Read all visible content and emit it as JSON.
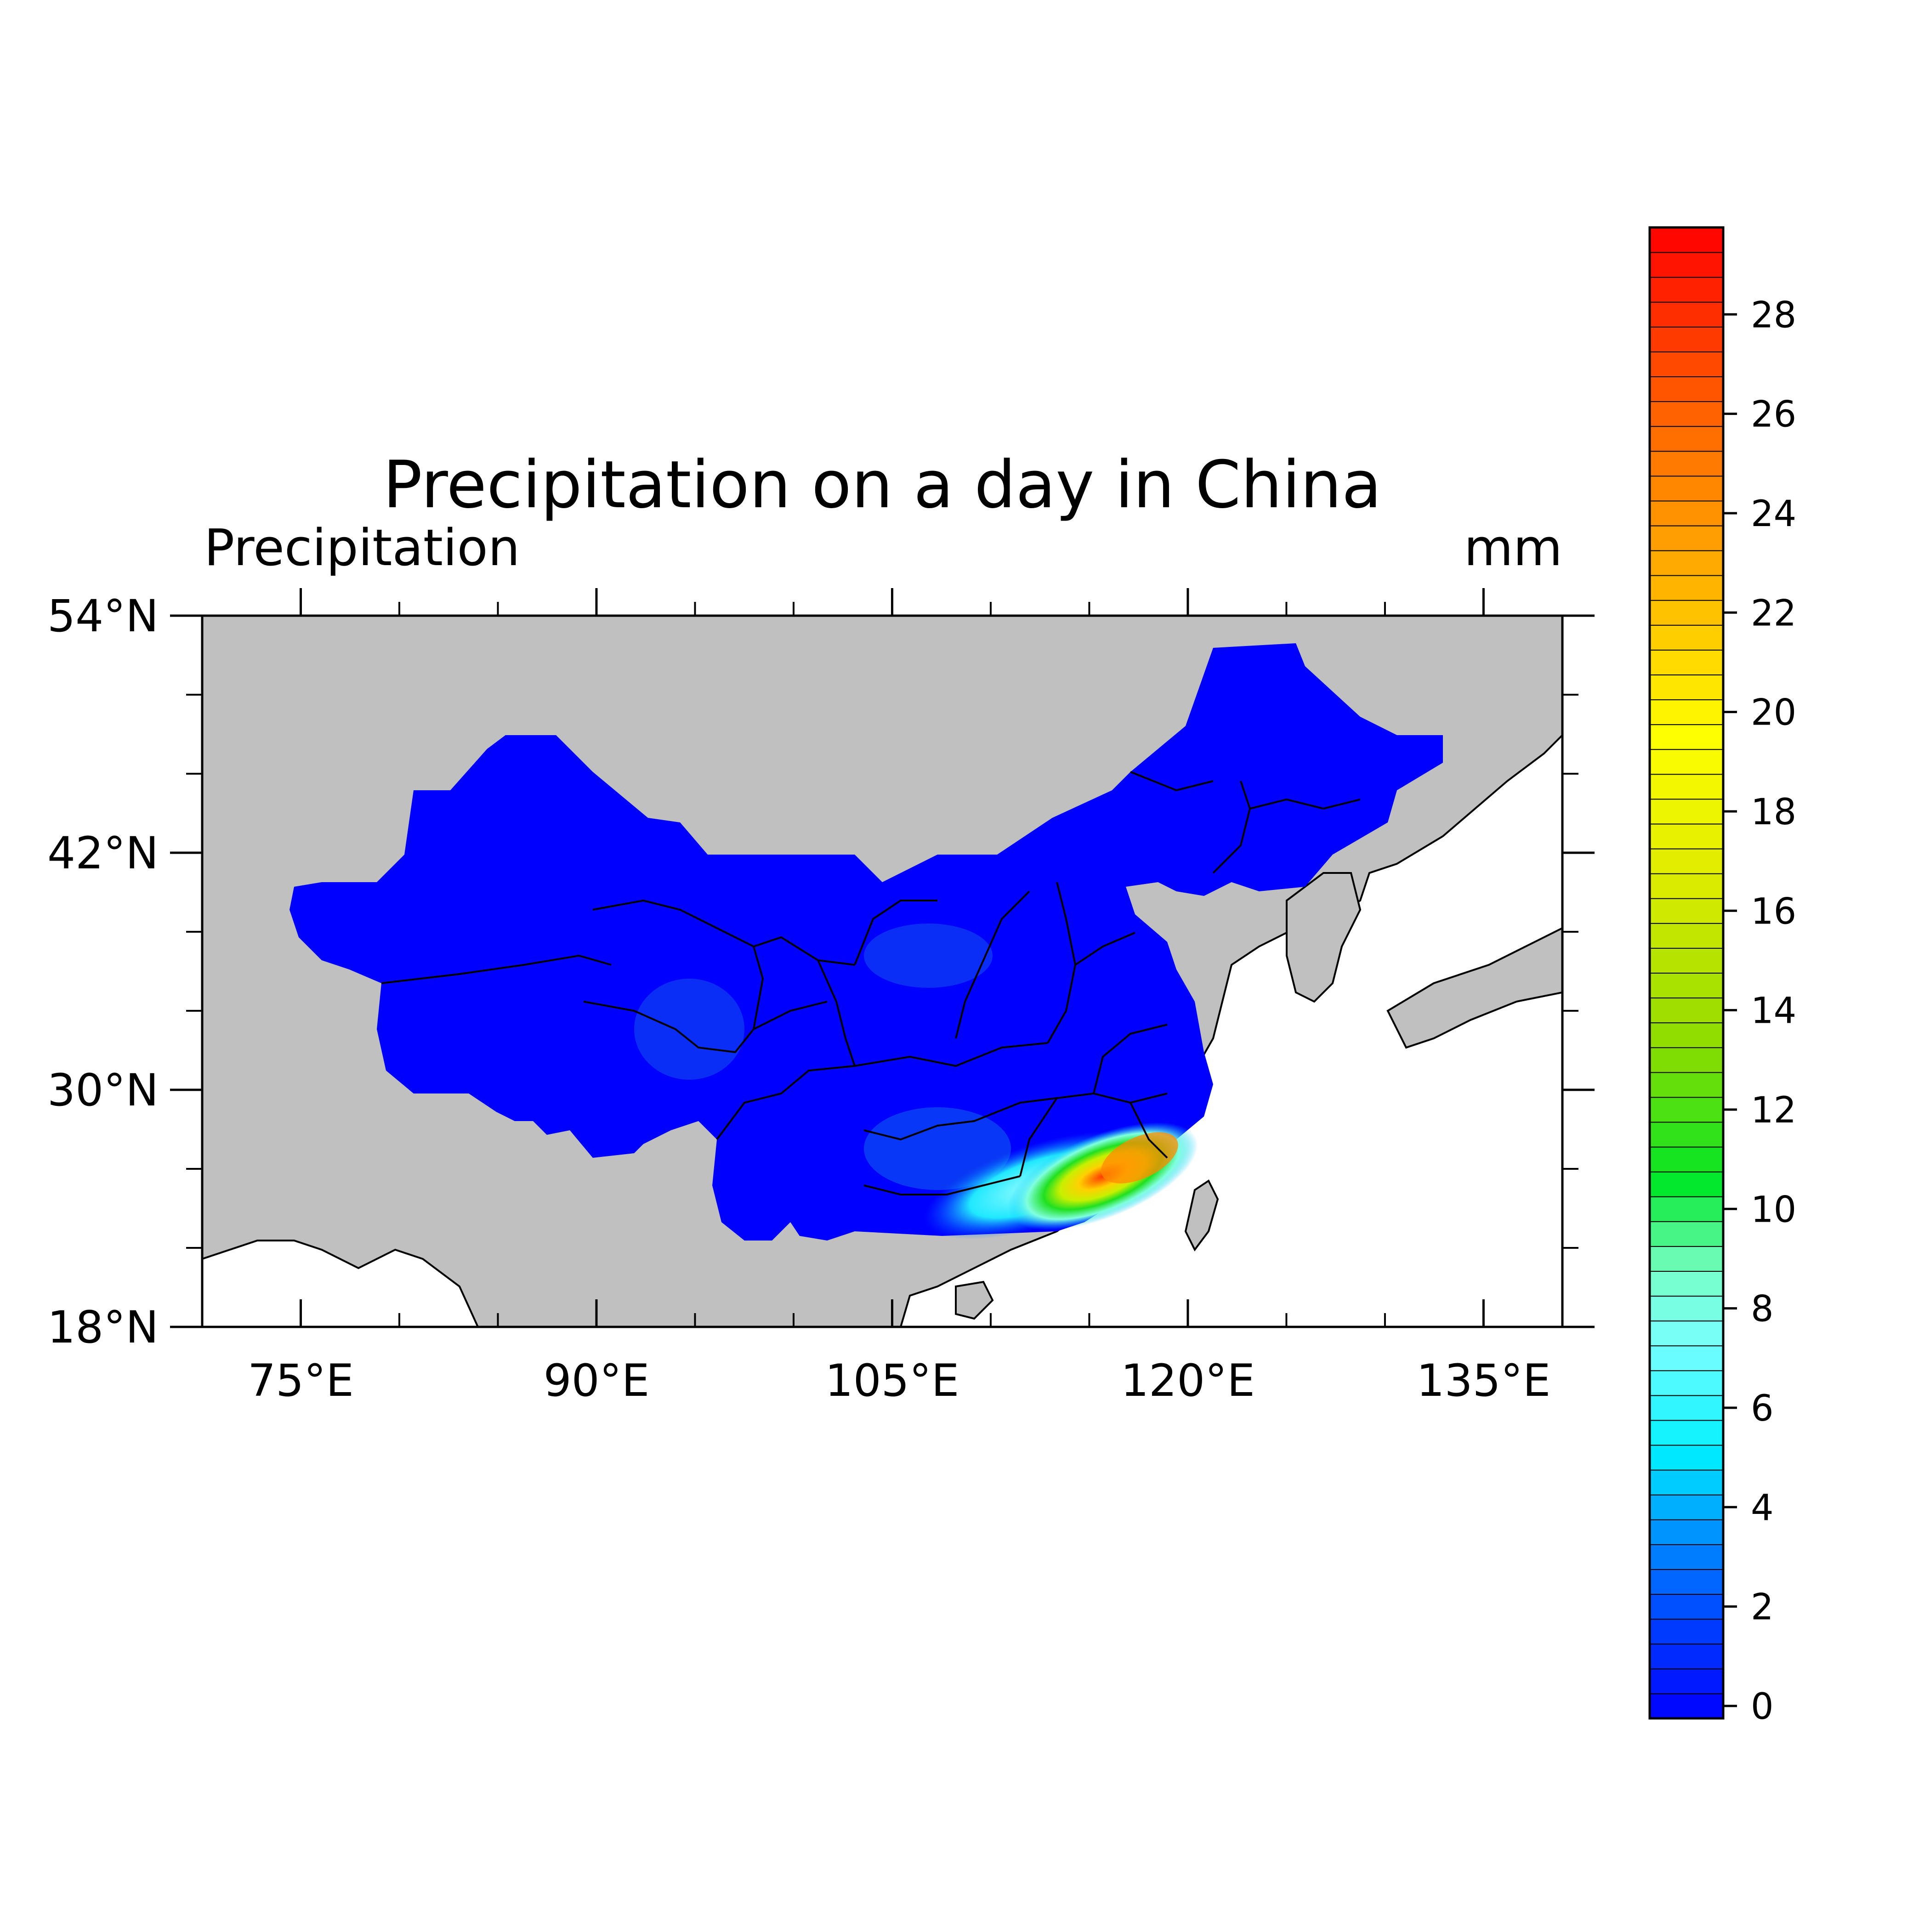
{
  "chart_data": {
    "type": "heatmap",
    "title": "Precipitation on a day in China",
    "left_string": "Precipitation",
    "right_string": "mm",
    "projection": "lat-lon",
    "lon_range": [
      70,
      139
    ],
    "lat_range": [
      18,
      54
    ],
    "x_ticks": [
      {
        "value": 75,
        "label": "75°E"
      },
      {
        "value": 90,
        "label": "90°E"
      },
      {
        "value": 105,
        "label": "105°E"
      },
      {
        "value": 120,
        "label": "120°E"
      },
      {
        "value": 135,
        "label": "135°E"
      }
    ],
    "y_ticks": [
      {
        "value": 54,
        "label": "54°N"
      },
      {
        "value": 42,
        "label": "42°N"
      },
      {
        "value": 30,
        "label": "30°N"
      },
      {
        "value": 18,
        "label": "18°N"
      }
    ],
    "colorbar": {
      "min": 0,
      "max": 30,
      "ticks": [
        {
          "value": 0,
          "label": "0"
        },
        {
          "value": 2,
          "label": "2"
        },
        {
          "value": 4,
          "label": "4"
        },
        {
          "value": 6,
          "label": "6"
        },
        {
          "value": 8,
          "label": "8"
        },
        {
          "value": 10,
          "label": "10"
        },
        {
          "value": 12,
          "label": "12"
        },
        {
          "value": 14,
          "label": "14"
        },
        {
          "value": 16,
          "label": "16"
        },
        {
          "value": 18,
          "label": "18"
        },
        {
          "value": 20,
          "label": "20"
        },
        {
          "value": 22,
          "label": "22"
        },
        {
          "value": 24,
          "label": "24"
        },
        {
          "value": 26,
          "label": "26"
        },
        {
          "value": 28,
          "label": "28"
        }
      ],
      "colormap": "blue-cyan-green-yellow-orange-red"
    },
    "field_summary": {
      "background_value": 0,
      "max_region": "South China (approx. 112–122°E, 23–28°N)",
      "max_value_approx": 24
    },
    "colors": {
      "land": "#c0c0c0",
      "ocean": "#ffffff",
      "low": "#0000ff",
      "high": "#ff0000"
    }
  }
}
